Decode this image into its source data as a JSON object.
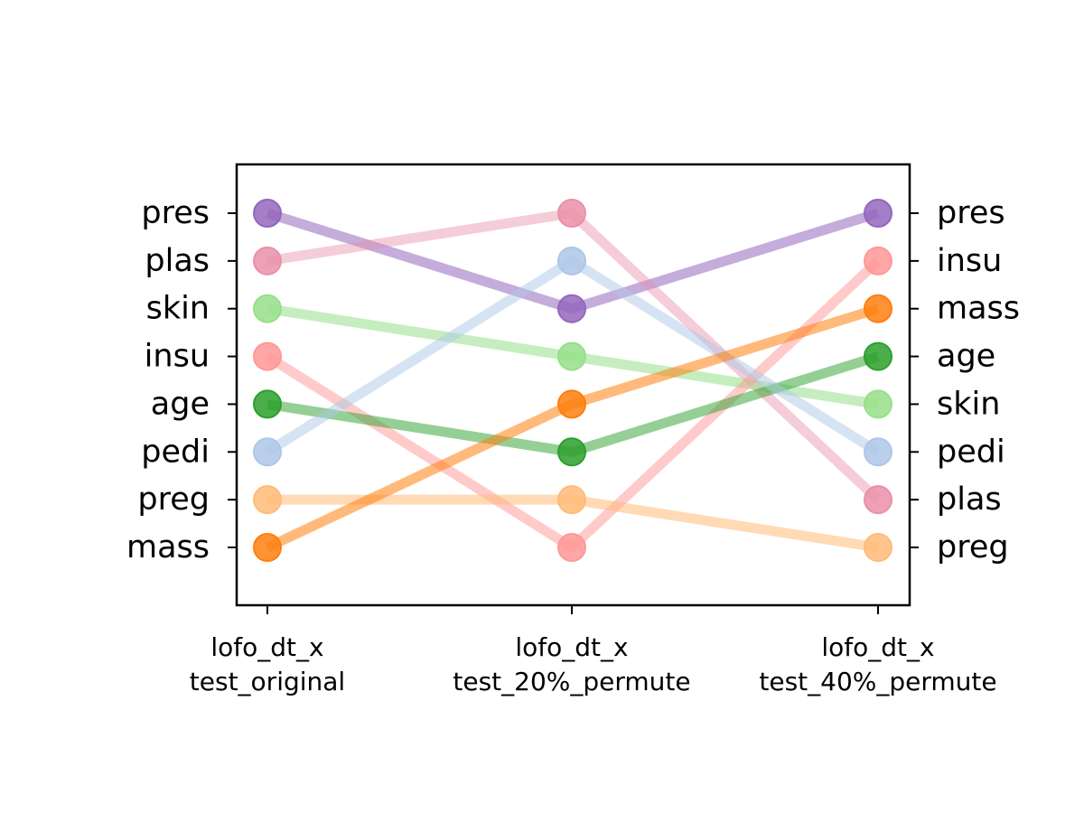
{
  "chart_data": {
    "type": "line",
    "title": "",
    "xlabel": "",
    "ylabel": "",
    "grid": false,
    "categories": [
      "lofo_dt_x\ntest_original",
      "lofo_dt_x\ntest_20%_permute",
      "lofo_dt_x\ntest_40%_permute"
    ],
    "left_tick_labels": [
      "mass",
      "preg",
      "pedi",
      "age",
      "insu",
      "skin",
      "plas",
      "pres"
    ],
    "right_tick_labels": [
      "preg",
      "plas",
      "pedi",
      "skin",
      "age",
      "mass",
      "insu",
      "pres"
    ],
    "y_range": [
      0,
      7
    ],
    "series": [
      {
        "label": "pres",
        "rank": [
          7,
          5,
          7
        ],
        "color": "#9467bd",
        "opacity": 0.55
      },
      {
        "label": "plas",
        "rank": [
          6,
          7,
          1
        ],
        "color": "#e991a9",
        "opacity": 0.45
      },
      {
        "label": "skin",
        "rank": [
          5,
          4,
          3
        ],
        "color": "#98df8a",
        "opacity": 0.55
      },
      {
        "label": "insu",
        "rank": [
          4,
          0,
          6
        ],
        "color": "#ff9896",
        "opacity": 0.5
      },
      {
        "label": "age",
        "rank": [
          3,
          2,
          4
        ],
        "color": "#2ca02c",
        "opacity": 0.5
      },
      {
        "label": "pedi",
        "rank": [
          2,
          6,
          2
        ],
        "color": "#aec7e8",
        "opacity": 0.5
      },
      {
        "label": "preg",
        "rank": [
          1,
          1,
          0
        ],
        "color": "#ffbb78",
        "opacity": 0.55
      },
      {
        "label": "mass",
        "rank": [
          0,
          3,
          5
        ],
        "color": "#ff7f0e",
        "opacity": 0.55
      }
    ]
  }
}
